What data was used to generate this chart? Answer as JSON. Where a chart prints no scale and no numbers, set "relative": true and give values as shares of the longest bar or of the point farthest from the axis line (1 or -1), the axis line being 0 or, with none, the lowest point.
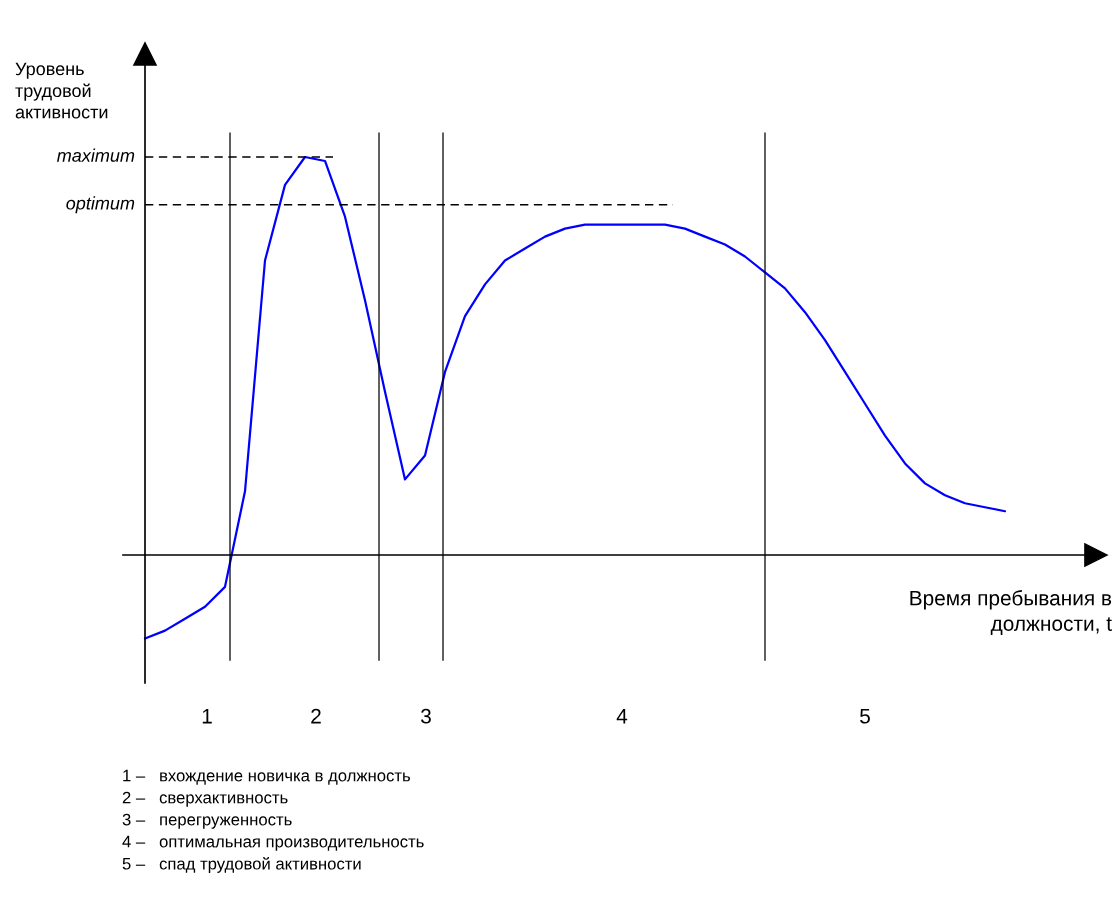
{
  "chart_data": {
    "type": "line",
    "relative": true,
    "ylabel": "Уровень\nтрудовой\nактивности",
    "xlabel": "Время пребывания в\nдолжности, t",
    "categories": [
      null,
      null,
      null,
      null,
      null,
      null,
      null,
      null,
      null,
      null,
      null,
      null,
      null,
      null,
      null,
      null,
      null,
      null,
      null,
      null,
      null,
      null,
      null,
      null,
      null,
      null,
      null,
      null,
      null,
      null,
      null,
      null,
      null,
      null,
      null,
      null,
      null,
      null,
      null,
      null,
      null,
      null,
      null,
      null
    ],
    "series": [
      {
        "color": "#0000ff",
        "values": [
          -0.21,
          -0.19,
          -0.16,
          -0.13,
          -0.08,
          0.16,
          0.74,
          0.93,
          1,
          0.99,
          0.85,
          0.64,
          0.41,
          0.19,
          0.25,
          0.46,
          0.6,
          0.68,
          0.74,
          0.77,
          0.8,
          0.82,
          0.83,
          0.83,
          0.83,
          0.83,
          0.83,
          0.82,
          0.8,
          0.78,
          0.75,
          0.71,
          0.67,
          0.61,
          0.54,
          0.46,
          0.38,
          0.3,
          0.23,
          0.18,
          0.15,
          0.13,
          0.12,
          0.11
        ]
      }
    ],
    "ref_lines": [
      {
        "axis": "y",
        "value": 1.0,
        "label": "maximum",
        "color": "#000000",
        "line_style": "dashed"
      },
      {
        "axis": "y",
        "value": 0.88,
        "label": "optimum",
        "color": "#000000",
        "line_style": "dashed"
      }
    ],
    "annotations": [
      "1",
      "2",
      "3",
      "4",
      "5",
      "1 –   вхождение новичка в должность",
      "2 –   сверхактивность",
      "3 –   перегруженность",
      "4 –   оптимальная производительность",
      "5 –   спад трудовой активности"
    ]
  }
}
